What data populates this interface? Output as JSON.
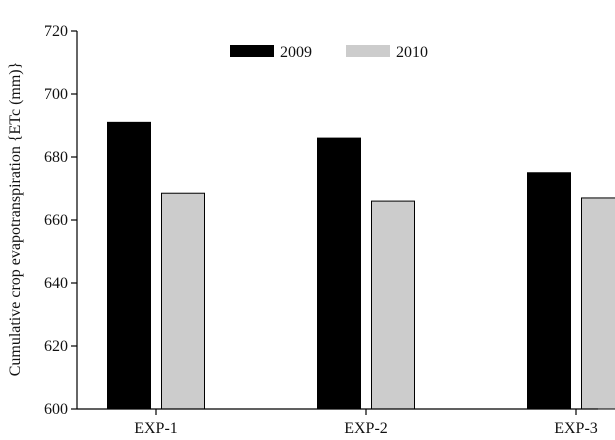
{
  "chart_data": {
    "type": "bar",
    "title": "",
    "xlabel": "",
    "ylabel": "Cumulative crop evapotranspiration {ETc (mm)}",
    "categories": [
      "EXP-1",
      "EXP-2",
      "EXP-3"
    ],
    "ylim": [
      600,
      720
    ],
    "yticks": [
      600,
      620,
      640,
      660,
      680,
      700,
      720
    ],
    "grid": false,
    "legend_position": "top-center",
    "series": [
      {
        "name": "2009",
        "color": "#000000",
        "values": [
          691,
          686,
          675
        ]
      },
      {
        "name": "2010",
        "color": "#cccccc",
        "values": [
          668.5,
          666,
          667
        ]
      }
    ]
  }
}
